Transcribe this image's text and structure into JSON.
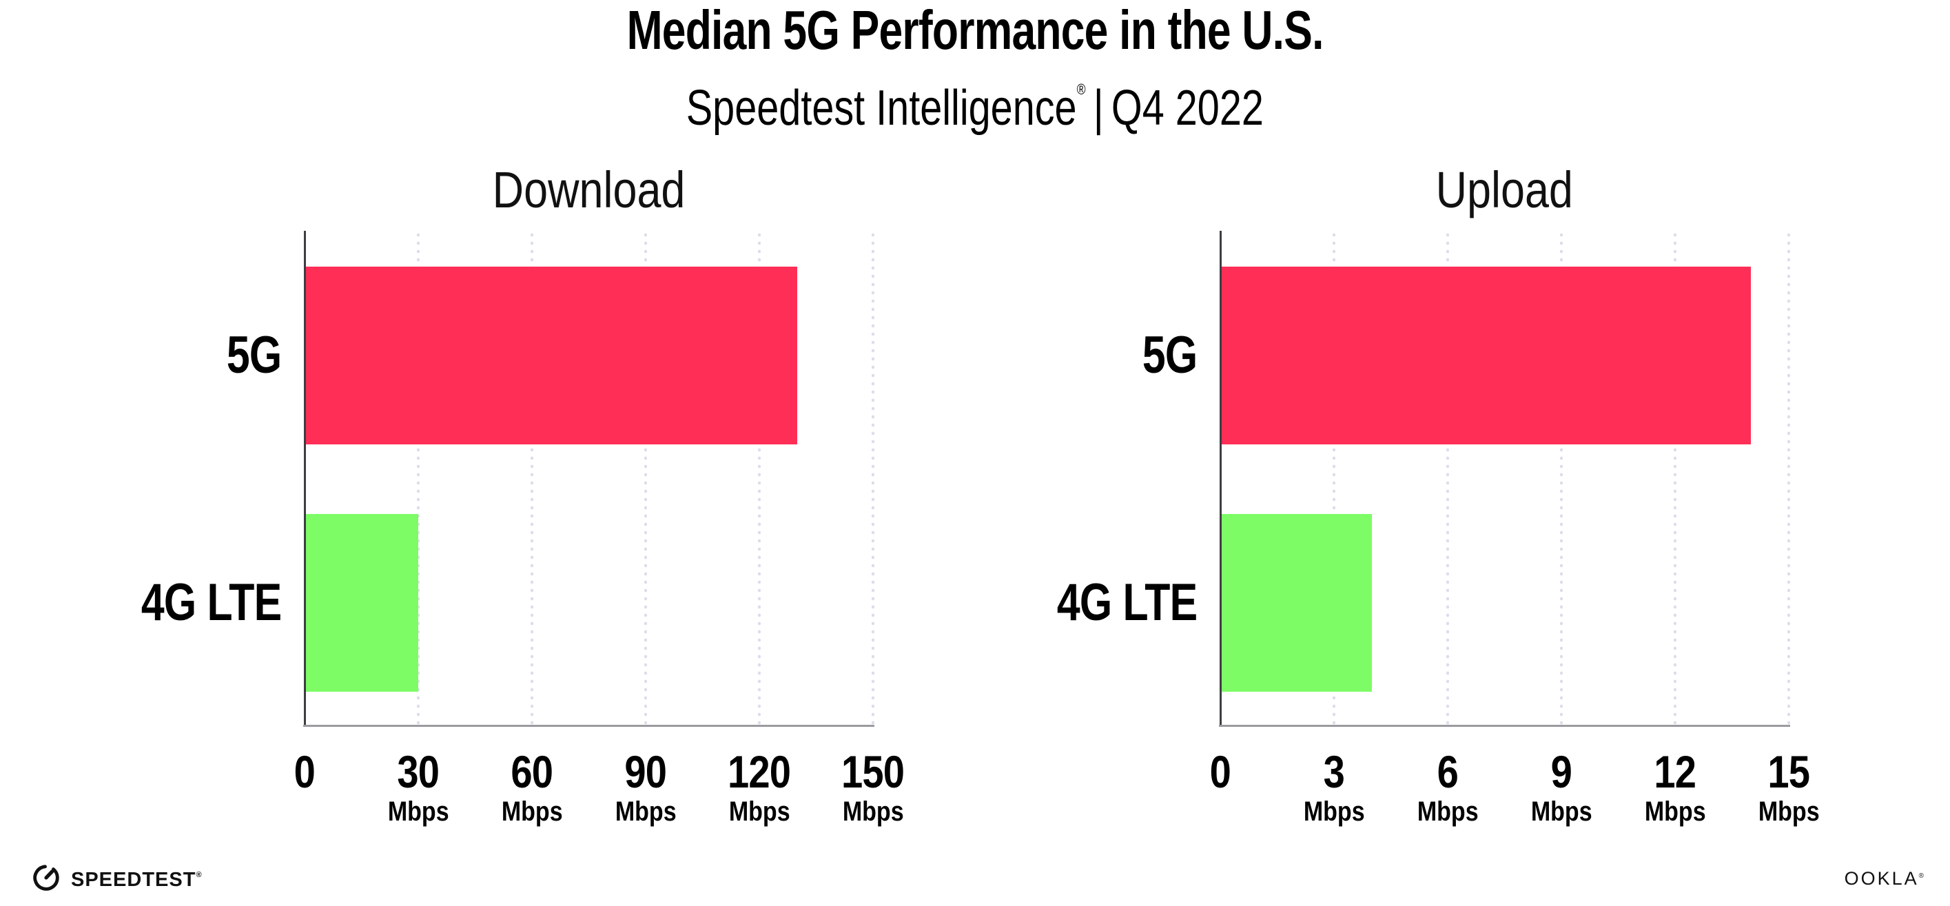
{
  "header": {
    "title": "Median 5G Performance in the U.S.",
    "subtitle_brand": "Speedtest Intelligence",
    "subtitle_mark": "®",
    "subtitle_divider": "|",
    "subtitle_period": "Q4 2022"
  },
  "colors": {
    "bar_5g": "#FF2E56",
    "bar_4g_lte": "#7DFC66",
    "y_axis": "#3d3d42",
    "x_axis": "#9a9aa0",
    "gridline_dots": "#dedce9",
    "text": "#000000"
  },
  "chart_data": [
    {
      "type": "bar",
      "orientation": "horizontal",
      "title": "Download",
      "categories": [
        "5G",
        "4G LTE"
      ],
      "values": [
        130,
        30
      ],
      "unit": "Mbps",
      "xlim": [
        0,
        150
      ],
      "xticks": [
        0,
        30,
        60,
        90,
        120,
        150
      ],
      "bar_colors": [
        "#FF2E56",
        "#7DFC66"
      ],
      "grid": "dotted-vertical",
      "legend": "none"
    },
    {
      "type": "bar",
      "orientation": "horizontal",
      "title": "Upload",
      "categories": [
        "5G",
        "4G LTE"
      ],
      "values": [
        14,
        4
      ],
      "unit": "Mbps",
      "xlim": [
        0,
        15
      ],
      "xticks": [
        0,
        3,
        6,
        9,
        12,
        15
      ],
      "bar_colors": [
        "#FF2E56",
        "#7DFC66"
      ],
      "grid": "dotted-vertical",
      "legend": "none"
    }
  ],
  "footer": {
    "speedtest_logo_text": "SPEEDTEST",
    "speedtest_logo_mark": "®",
    "ookla_logo_text": "OOKLA",
    "ookla_logo_mark": "®"
  }
}
